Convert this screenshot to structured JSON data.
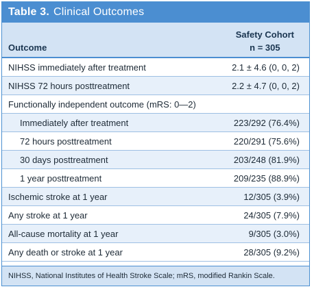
{
  "title": {
    "label": "Table 3.",
    "text": "Clinical Outcomes"
  },
  "header": {
    "outcome": "Outcome",
    "cohort_line1": "Safety Cohort",
    "cohort_line2": "n = 305"
  },
  "rows": [
    {
      "label": "NIHSS immediately after treatment",
      "value": "2.1 ± 4.6 (0, 0, 2)"
    },
    {
      "label": "NIHSS 72 hours posttreatment",
      "value": "2.2 ± 4.7 (0, 0, 2)"
    },
    {
      "label": "Functionally independent outcome (mRS: 0—2)",
      "value": ""
    },
    {
      "label": "Immediately after treatment",
      "value": "223/292 (76.4%)"
    },
    {
      "label": "72 hours posttreatment",
      "value": "220/291 (75.6%)"
    },
    {
      "label": "30 days posttreatment",
      "value": "203/248 (81.9%)"
    },
    {
      "label": "1 year posttreatment",
      "value": "209/235 (88.9%)"
    },
    {
      "label": "Ischemic stroke at 1 year",
      "value": "12/305 (3.9%)"
    },
    {
      "label": "Any stroke at 1 year",
      "value": "24/305 (7.9%)"
    },
    {
      "label": "All-cause mortality at 1 year",
      "value": "9/305 (3.0%)"
    },
    {
      "label": "Any death or stroke at 1 year",
      "value": "28/305 (9.2%)"
    }
  ],
  "footnote": "NIHSS, National Institutes of Health Stroke Scale; mRS, modified Rankin Scale."
}
